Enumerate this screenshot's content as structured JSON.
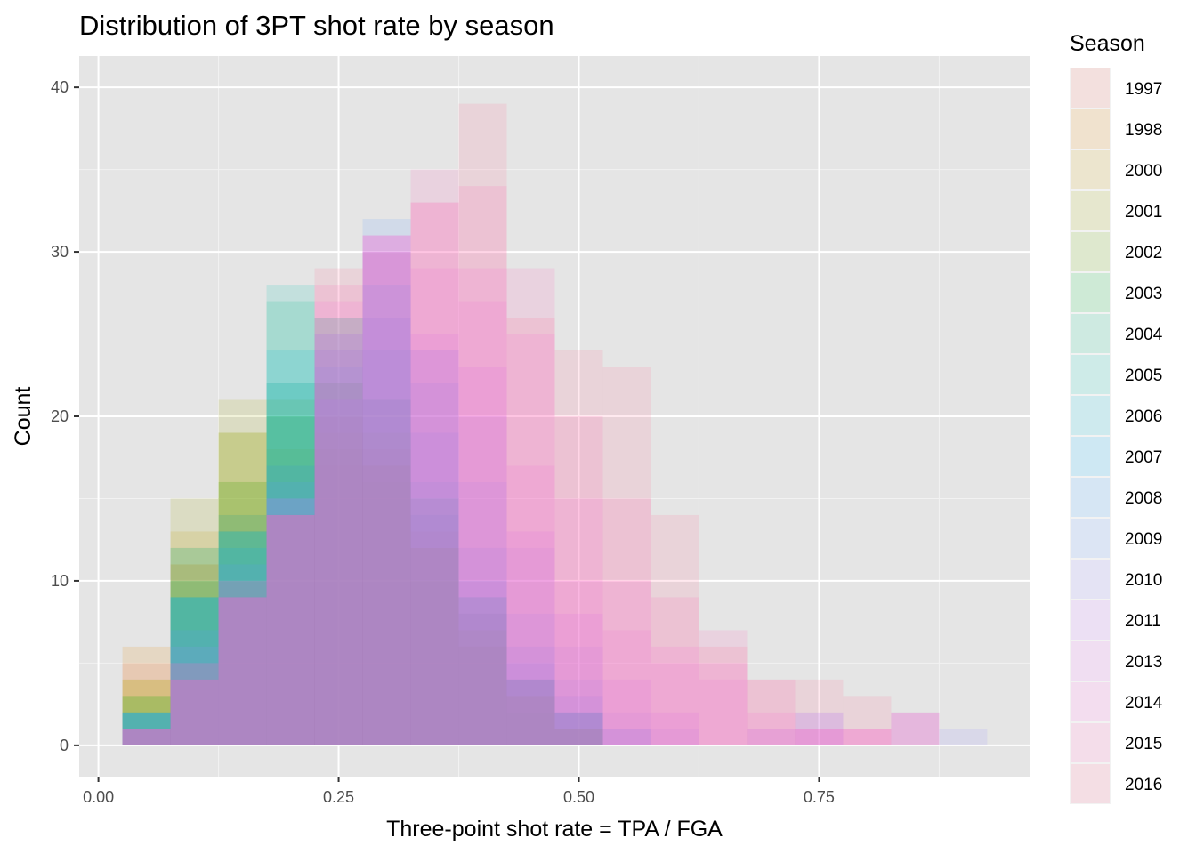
{
  "chart_data": {
    "type": "bar",
    "subtype": "overlaid histogram",
    "title": "Distribution of 3PT shot rate by season",
    "xlabel": "Three-point shot rate = TPA / FGA",
    "ylabel": "Count",
    "xlim": [
      -0.02,
      0.97
    ],
    "ylim": [
      -1.9,
      41.9
    ],
    "x_ticks": [
      0.0,
      0.25,
      0.5,
      0.75
    ],
    "x_tick_labels": [
      "0.00",
      "0.25",
      "0.50",
      "0.75"
    ],
    "y_ticks": [
      0,
      10,
      20,
      30,
      40
    ],
    "y_tick_labels": [
      "0",
      "10",
      "20",
      "30",
      "40"
    ],
    "bin_width": 0.05,
    "bins_start": [
      0.025,
      0.075,
      0.125,
      0.175,
      0.225,
      0.275,
      0.325,
      0.375,
      0.425,
      0.475,
      0.525,
      0.575,
      0.625,
      0.675,
      0.725,
      0.775,
      0.825,
      0.875
    ],
    "grid": true,
    "panel_background": "#e5e5e5",
    "legend_title": "Season",
    "legend_position": "right",
    "bar_opacity": 0.15,
    "series": [
      {
        "name": "1997",
        "color": "#F8766D",
        "values": [
          5,
          11,
          14,
          17,
          17,
          18,
          13,
          8,
          4,
          1,
          0,
          0,
          0,
          0,
          0,
          0,
          0,
          0
        ]
      },
      {
        "name": "1998",
        "color": "#E58700",
        "values": [
          6,
          11,
          16,
          18,
          19,
          17,
          12,
          7,
          3,
          1,
          0,
          0,
          0,
          0,
          0,
          0,
          0,
          0
        ]
      },
      {
        "name": "2000",
        "color": "#C99800",
        "values": [
          4,
          13,
          19,
          20,
          18,
          16,
          12,
          6,
          3,
          1,
          0,
          0,
          0,
          0,
          0,
          0,
          0,
          0
        ]
      },
      {
        "name": "2001",
        "color": "#A3A500",
        "values": [
          4,
          15,
          21,
          21,
          20,
          17,
          10,
          6,
          2,
          1,
          0,
          0,
          0,
          0,
          0,
          0,
          0,
          0
        ]
      },
      {
        "name": "2002",
        "color": "#6BB100",
        "values": [
          3,
          12,
          19,
          22,
          22,
          19,
          12,
          7,
          3,
          1,
          0,
          0,
          0,
          0,
          0,
          0,
          0,
          0
        ]
      },
      {
        "name": "2003",
        "color": "#00BA38",
        "values": [
          3,
          10,
          16,
          20,
          22,
          21,
          15,
          9,
          4,
          2,
          0,
          0,
          0,
          0,
          0,
          0,
          0,
          0
        ]
      },
      {
        "name": "2004",
        "color": "#00BF7D",
        "values": [
          2,
          9,
          13,
          27,
          26,
          21,
          14,
          8,
          4,
          2,
          0,
          0,
          0,
          0,
          0,
          0,
          0,
          0
        ]
      },
      {
        "name": "2005",
        "color": "#00C0AF",
        "values": [
          2,
          9,
          13,
          28,
          26,
          24,
          15,
          9,
          4,
          2,
          0,
          0,
          0,
          0,
          0,
          0,
          0,
          0
        ]
      },
      {
        "name": "2006",
        "color": "#00BCD8",
        "values": [
          2,
          12,
          14,
          24,
          24,
          26,
          16,
          9,
          4,
          2,
          0,
          0,
          0,
          0,
          0,
          0,
          0,
          0
        ]
      },
      {
        "name": "2007",
        "color": "#00B0F6",
        "values": [
          2,
          9,
          12,
          22,
          25,
          28,
          19,
          10,
          5,
          2,
          0,
          0,
          0,
          0,
          0,
          0,
          0,
          0
        ]
      },
      {
        "name": "2008",
        "color": "#35A2FF",
        "values": [
          2,
          9,
          13,
          17,
          23,
          30,
          22,
          12,
          6,
          3,
          1,
          0,
          0,
          0,
          0,
          0,
          0,
          0
        ]
      },
      {
        "name": "2009",
        "color": "#619CFF",
        "values": [
          2,
          7,
          11,
          16,
          21,
          32,
          24,
          16,
          8,
          4,
          1,
          0,
          0,
          0,
          0,
          0,
          0,
          0
        ]
      },
      {
        "name": "2010",
        "color": "#9590FF",
        "values": [
          1,
          6,
          10,
          15,
          21,
          26,
          24,
          20,
          12,
          6,
          2,
          1,
          0,
          1,
          2,
          0,
          0,
          1
        ]
      },
      {
        "name": "2011",
        "color": "#C77CFF",
        "values": [
          1,
          5,
          9,
          15,
          24,
          30,
          25,
          23,
          13,
          8,
          4,
          2,
          0,
          0,
          2,
          0,
          2,
          0
        ]
      },
      {
        "name": "2013",
        "color": "#E76BF3",
        "values": [
          1,
          4,
          9,
          14,
          25,
          31,
          29,
          27,
          17,
          10,
          7,
          5,
          4,
          1,
          1,
          1,
          2,
          0
        ]
      },
      {
        "name": "2014",
        "color": "#FA62DB",
        "values": [
          1,
          4,
          9,
          14,
          27,
          31,
          33,
          29,
          25,
          15,
          10,
          6,
          5,
          2,
          1,
          1,
          0,
          0
        ]
      },
      {
        "name": "2015",
        "color": "#FF62BC",
        "values": [
          1,
          4,
          9,
          14,
          28,
          31,
          35,
          34,
          29,
          20,
          15,
          9,
          7,
          4,
          1,
          1,
          0,
          0
        ]
      },
      {
        "name": "2016",
        "color": "#FF6C91",
        "values": [
          1,
          5,
          10,
          14,
          29,
          30,
          33,
          39,
          26,
          24,
          23,
          14,
          6,
          4,
          4,
          3,
          2,
          0
        ]
      }
    ]
  }
}
